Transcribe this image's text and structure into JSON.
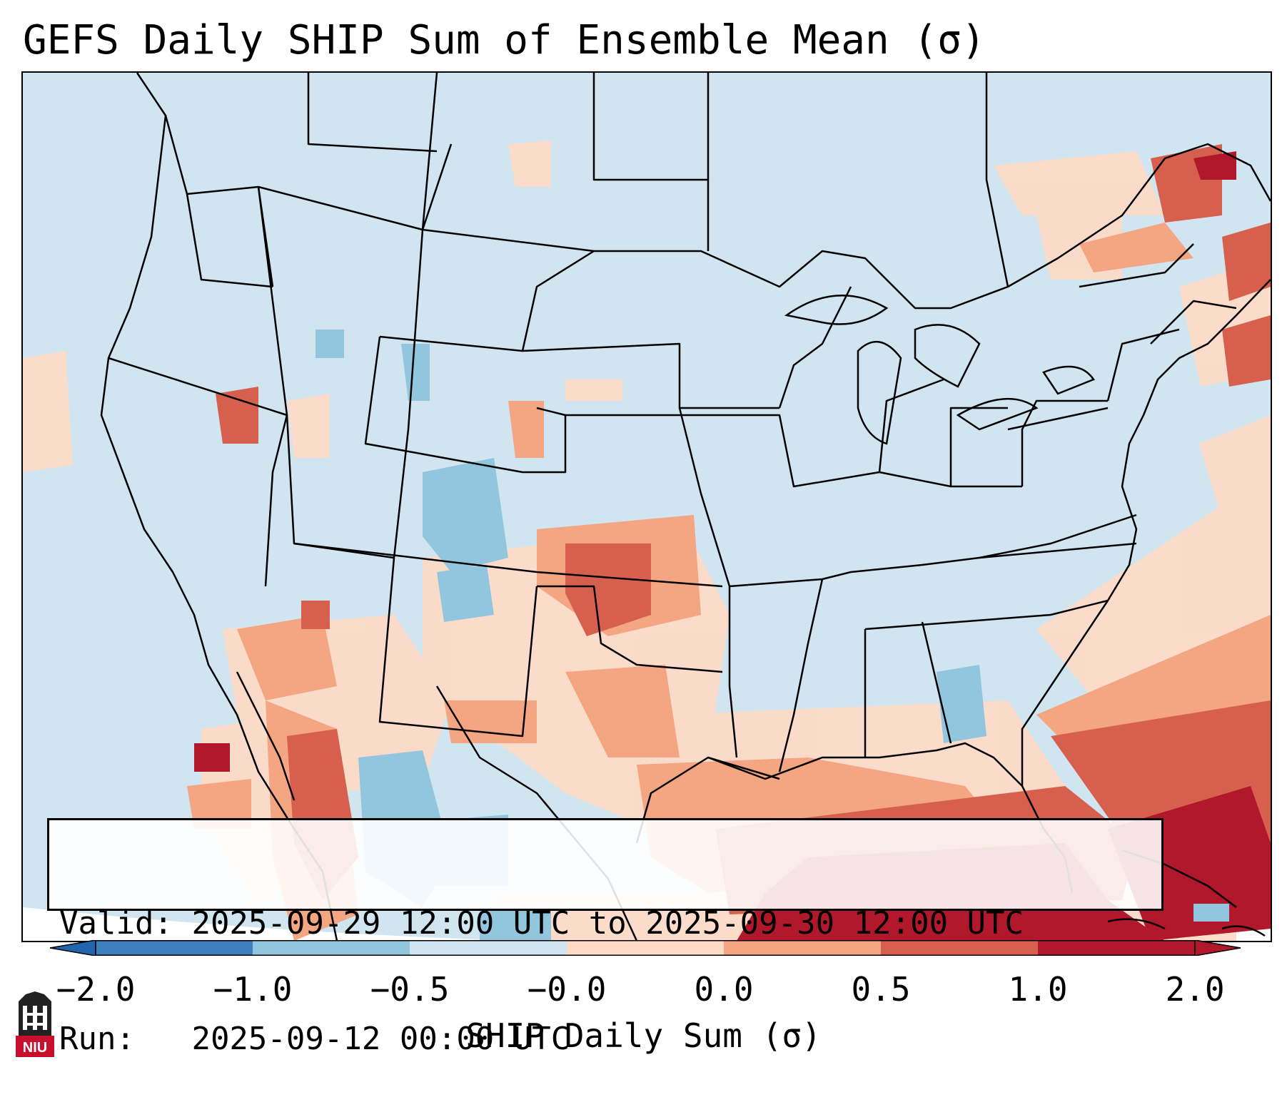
{
  "title": "GEFS Daily SHIP Sum of Ensemble Mean (σ)",
  "info": {
    "valid_label": "Valid:",
    "valid_value": "2025-09-29 12:00 UTC to 2025-09-30 12:00 UTC",
    "run_label": "Run:",
    "run_value": "2025-09-12 00:00 UTC"
  },
  "colorbar": {
    "label": "SHIP Daily Sum (σ)",
    "ticks": [
      "−2.0",
      "−1.0",
      "−0.5",
      "−0.0",
      "0.0",
      "0.5",
      "1.0",
      "2.0"
    ],
    "colors": [
      "#3f7fbd",
      "#92c5de",
      "#d1e5f0",
      "#fddbc7",
      "#f4a582",
      "#d6604d",
      "#b2182b"
    ],
    "extend_low_color": "#2166ac",
    "extend_high_color": "#b2182b"
  },
  "map": {
    "background_color": "#d1e5f0",
    "outside_color": "#ffffff",
    "border_color": "#000000"
  },
  "logo": {
    "text": "NIU"
  }
}
